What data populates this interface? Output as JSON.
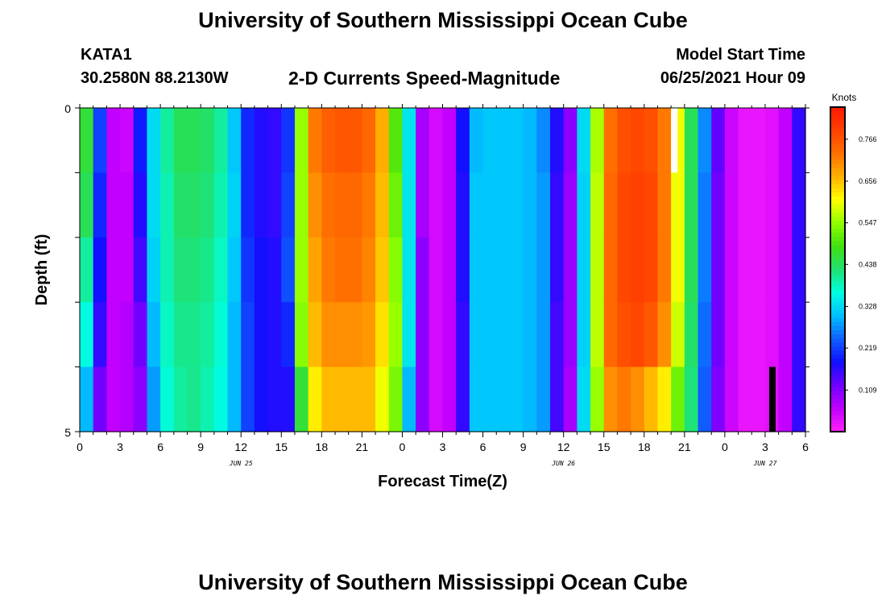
{
  "header": {
    "title": "University of Southern Mississippi Ocean Cube",
    "station": "KATA1",
    "coords": "30.2580N  88.2130W",
    "plot_title": "2-D Currents Speed-Magnitude",
    "start_label": "Model Start Time",
    "start_value": "06/25/2021 Hour 09"
  },
  "footer": {
    "title": "University of Southern Mississippi Ocean Cube"
  },
  "chart_data": {
    "type": "heatmap",
    "title": "2-D Currents Speed-Magnitude",
    "xlabel": "Forecast Time(Z)",
    "ylabel": "Depth (ft)",
    "colorbar_label": "Knots",
    "x_tick_labels": [
      "0",
      "3",
      "6",
      "9",
      "12",
      "15",
      "18",
      "21",
      "0",
      "3",
      "6",
      "9",
      "12",
      "15",
      "18",
      "21",
      "0",
      "3",
      "6"
    ],
    "date_labels": [
      {
        "label": "JUN 25",
        "hour_index": 12
      },
      {
        "label": "JUN 26",
        "hour_index": 36
      },
      {
        "label": "JUN 27",
        "hour_index": 51
      }
    ],
    "y_tick_labels": [
      "0",
      "5"
    ],
    "ylim": [
      0,
      5
    ],
    "xlim_hours": [
      0,
      54
    ],
    "colorbar_ticks": [
      "0.109",
      "0.219",
      "0.328",
      "0.438",
      "0.547",
      "0.656",
      "0.766"
    ],
    "value_range": [
      0.0,
      0.85
    ],
    "depth_layers": [
      0,
      1,
      2,
      3,
      4
    ],
    "speed_knots": [
      {
        "hour": 0,
        "speed": [
          0.46,
          0.44,
          0.4,
          0.36,
          0.3
        ]
      },
      {
        "hour": 1,
        "speed": [
          0.22,
          0.2,
          0.18,
          0.16,
          0.12
        ]
      },
      {
        "hour": 2,
        "speed": [
          0.06,
          0.06,
          0.06,
          0.06,
          0.06
        ]
      },
      {
        "hour": 3,
        "speed": [
          0.05,
          0.06,
          0.06,
          0.07,
          0.07
        ]
      },
      {
        "hour": 4,
        "speed": [
          0.19,
          0.17,
          0.15,
          0.12,
          0.1
        ]
      },
      {
        "hour": 5,
        "speed": [
          0.33,
          0.33,
          0.32,
          0.3,
          0.28
        ]
      },
      {
        "hour": 6,
        "speed": [
          0.4,
          0.39,
          0.39,
          0.38,
          0.37
        ]
      },
      {
        "hour": 7,
        "speed": [
          0.44,
          0.43,
          0.42,
          0.41,
          0.4
        ]
      },
      {
        "hour": 8,
        "speed": [
          0.44,
          0.43,
          0.42,
          0.41,
          0.41
        ]
      },
      {
        "hour": 9,
        "speed": [
          0.43,
          0.42,
          0.41,
          0.4,
          0.39
        ]
      },
      {
        "hour": 10,
        "speed": [
          0.4,
          0.39,
          0.38,
          0.37,
          0.36
        ]
      },
      {
        "hour": 11,
        "speed": [
          0.31,
          0.32,
          0.31,
          0.3,
          0.3
        ]
      },
      {
        "hour": 12,
        "speed": [
          0.2,
          0.2,
          0.21,
          0.22,
          0.22
        ]
      },
      {
        "hour": 13,
        "speed": [
          0.17,
          0.17,
          0.18,
          0.18,
          0.18
        ]
      },
      {
        "hour": 14,
        "speed": [
          0.16,
          0.16,
          0.17,
          0.17,
          0.17
        ]
      },
      {
        "hour": 15,
        "speed": [
          0.21,
          0.22,
          0.23,
          0.2,
          0.17
        ]
      },
      {
        "hour": 16,
        "speed": [
          0.55,
          0.55,
          0.55,
          0.54,
          0.46
        ]
      },
      {
        "hour": 17,
        "speed": [
          0.72,
          0.7,
          0.68,
          0.66,
          0.62
        ]
      },
      {
        "hour": 18,
        "speed": [
          0.75,
          0.73,
          0.72,
          0.7,
          0.66
        ]
      },
      {
        "hour": 19,
        "speed": [
          0.76,
          0.74,
          0.73,
          0.7,
          0.66
        ]
      },
      {
        "hour": 20,
        "speed": [
          0.76,
          0.74,
          0.73,
          0.7,
          0.66
        ]
      },
      {
        "hour": 21,
        "speed": [
          0.74,
          0.72,
          0.71,
          0.69,
          0.66
        ]
      },
      {
        "hour": 22,
        "speed": [
          0.67,
          0.66,
          0.65,
          0.63,
          0.6
        ]
      },
      {
        "hour": 23,
        "speed": [
          0.5,
          0.52,
          0.54,
          0.55,
          0.53
        ]
      },
      {
        "hour": 24,
        "speed": [
          0.34,
          0.34,
          0.34,
          0.34,
          0.3
        ]
      },
      {
        "hour": 25,
        "speed": [
          0.08,
          0.08,
          0.1,
          0.1,
          0.1
        ]
      },
      {
        "hour": 26,
        "speed": [
          0.04,
          0.04,
          0.04,
          0.04,
          0.04
        ]
      },
      {
        "hour": 27,
        "speed": [
          0.06,
          0.06,
          0.06,
          0.06,
          0.06
        ]
      },
      {
        "hour": 28,
        "speed": [
          0.18,
          0.17,
          0.17,
          0.16,
          0.16
        ]
      },
      {
        "hour": 29,
        "speed": [
          0.3,
          0.31,
          0.31,
          0.31,
          0.31
        ]
      },
      {
        "hour": 30,
        "speed": [
          0.31,
          0.31,
          0.31,
          0.31,
          0.31
        ]
      },
      {
        "hour": 31,
        "speed": [
          0.31,
          0.31,
          0.31,
          0.31,
          0.31
        ]
      },
      {
        "hour": 32,
        "speed": [
          0.31,
          0.31,
          0.31,
          0.31,
          0.31
        ]
      },
      {
        "hour": 33,
        "speed": [
          0.3,
          0.3,
          0.3,
          0.3,
          0.3
        ]
      },
      {
        "hour": 34,
        "speed": [
          0.27,
          0.28,
          0.28,
          0.28,
          0.28
        ]
      },
      {
        "hour": 35,
        "speed": [
          0.17,
          0.16,
          0.16,
          0.15,
          0.15
        ]
      },
      {
        "hour": 36,
        "speed": [
          0.1,
          0.09,
          0.09,
          0.09,
          0.08
        ]
      },
      {
        "hour": 37,
        "speed": [
          0.33,
          0.32,
          0.32,
          0.32,
          0.33
        ]
      },
      {
        "hour": 38,
        "speed": [
          0.56,
          0.57,
          0.57,
          0.57,
          0.55
        ]
      },
      {
        "hour": 39,
        "speed": [
          0.73,
          0.74,
          0.74,
          0.74,
          0.7
        ]
      },
      {
        "hour": 40,
        "speed": [
          0.77,
          0.78,
          0.78,
          0.77,
          0.72
        ]
      },
      {
        "hour": 41,
        "speed": [
          0.78,
          0.79,
          0.79,
          0.78,
          0.7
        ]
      },
      {
        "hour": 42,
        "speed": [
          0.77,
          0.78,
          0.78,
          0.76,
          0.66
        ]
      },
      {
        "hour": 43,
        "speed": [
          0.72,
          0.72,
          0.72,
          0.7,
          0.62
        ]
      },
      {
        "hour": 44,
        "speed": [
          0.6,
          0.6,
          0.6,
          0.58,
          0.52
        ]
      },
      {
        "hour": 45,
        "speed": [
          0.44,
          0.44,
          0.44,
          0.43,
          0.42
        ]
      },
      {
        "hour": 46,
        "speed": [
          0.27,
          0.26,
          0.26,
          0.25,
          0.24
        ]
      },
      {
        "hour": 47,
        "speed": [
          0.13,
          0.12,
          0.12,
          0.12,
          0.11
        ]
      },
      {
        "hour": 48,
        "speed": [
          0.05,
          0.05,
          0.05,
          0.05,
          0.05
        ]
      },
      {
        "hour": 49,
        "speed": [
          0.02,
          0.02,
          0.02,
          0.02,
          0.02
        ]
      },
      {
        "hour": 50,
        "speed": [
          0.02,
          0.02,
          0.02,
          0.02,
          0.02
        ]
      },
      {
        "hour": 51,
        "speed": [
          0.03,
          0.03,
          0.03,
          0.03,
          0.03
        ]
      },
      {
        "hour": 52,
        "speed": [
          0.06,
          0.06,
          0.06,
          0.06,
          0.06
        ]
      },
      {
        "hour": 53,
        "speed": [
          0.16,
          0.16,
          0.16,
          0.16,
          0.16
        ]
      }
    ],
    "missing_markers": [
      {
        "hour": 44.0,
        "depth_layer": 0,
        "color": "#ffffff"
      },
      {
        "hour": 51.3,
        "depth_layer": 4,
        "color": "#000000"
      }
    ],
    "colormap": [
      "#ff20ff",
      "#c000ff",
      "#7000ff",
      "#1010ff",
      "#1060ff",
      "#00c0ff",
      "#00ffe0",
      "#20e070",
      "#40e010",
      "#90ff00",
      "#ffff00",
      "#ffb000",
      "#ff7000",
      "#ff4000",
      "#ff1800"
    ]
  }
}
